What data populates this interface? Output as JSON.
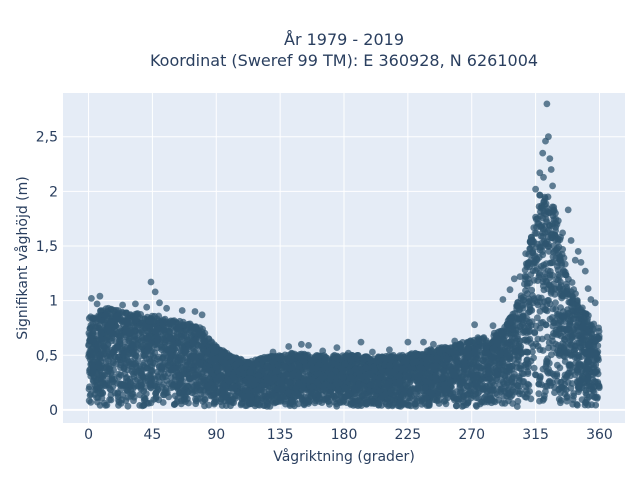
{
  "chart_data": {
    "type": "scatter",
    "title_line1": "År 1979 - 2019",
    "title_line2": "Koordinat (Sweref 99 TM): E 360928, N 6261004",
    "xlabel": "Vågriktning (grader)",
    "ylabel": "Signifikant våghöjd (m)",
    "xlim": [
      -18,
      378
    ],
    "ylim": [
      -0.12,
      2.9
    ],
    "x_ticks": [
      0,
      45,
      90,
      135,
      180,
      225,
      270,
      315,
      360
    ],
    "x_tick_labels": [
      "0",
      "45",
      "90",
      "135",
      "180",
      "225",
      "270",
      "315",
      "360"
    ],
    "y_ticks": [
      0,
      0.5,
      1,
      1.5,
      2,
      2.5
    ],
    "y_tick_labels": [
      "0",
      "0,5",
      "1",
      "1,5",
      "2",
      "2,5"
    ],
    "grid": true,
    "background": "#e5ecf6",
    "marker_color": "#2f5670",
    "envelope": {
      "direction": [
        0,
        10,
        20,
        30,
        40,
        50,
        60,
        70,
        80,
        90,
        100,
        110,
        120,
        130,
        140,
        150,
        160,
        170,
        180,
        190,
        200,
        210,
        220,
        230,
        240,
        250,
        260,
        270,
        280,
        290,
        300,
        305,
        310,
        315,
        320,
        325,
        330,
        335,
        340,
        345,
        350,
        355,
        360
      ],
      "upper_height": [
        0.85,
        0.93,
        0.92,
        0.9,
        0.88,
        0.86,
        0.82,
        0.8,
        0.75,
        0.58,
        0.5,
        0.45,
        0.47,
        0.5,
        0.52,
        0.52,
        0.5,
        0.5,
        0.5,
        0.5,
        0.48,
        0.5,
        0.5,
        0.52,
        0.55,
        0.58,
        0.6,
        0.65,
        0.68,
        0.72,
        0.9,
        1.1,
        1.45,
        1.85,
        2.15,
        2.0,
        1.75,
        1.45,
        1.2,
        1.0,
        0.9,
        0.82,
        0.75
      ]
    },
    "outliers": [
      {
        "x": 2,
        "y": 1.02
      },
      {
        "x": 8,
        "y": 1.04
      },
      {
        "x": 6,
        "y": 0.97
      },
      {
        "x": 14,
        "y": 0.93
      },
      {
        "x": 24,
        "y": 0.96
      },
      {
        "x": 33,
        "y": 0.97
      },
      {
        "x": 41,
        "y": 0.94
      },
      {
        "x": 44,
        "y": 1.17
      },
      {
        "x": 47,
        "y": 1.08
      },
      {
        "x": 50,
        "y": 0.98
      },
      {
        "x": 55,
        "y": 0.93
      },
      {
        "x": 66,
        "y": 0.91
      },
      {
        "x": 75,
        "y": 0.9
      },
      {
        "x": 80,
        "y": 0.87
      },
      {
        "x": 130,
        "y": 0.53
      },
      {
        "x": 141,
        "y": 0.58
      },
      {
        "x": 150,
        "y": 0.6
      },
      {
        "x": 155,
        "y": 0.59
      },
      {
        "x": 165,
        "y": 0.54
      },
      {
        "x": 175,
        "y": 0.57
      },
      {
        "x": 183,
        "y": 0.52
      },
      {
        "x": 192,
        "y": 0.62
      },
      {
        "x": 200,
        "y": 0.53
      },
      {
        "x": 212,
        "y": 0.55
      },
      {
        "x": 225,
        "y": 0.62
      },
      {
        "x": 236,
        "y": 0.62
      },
      {
        "x": 243,
        "y": 0.6
      },
      {
        "x": 258,
        "y": 0.63
      },
      {
        "x": 272,
        "y": 0.78
      },
      {
        "x": 285,
        "y": 0.77
      },
      {
        "x": 292,
        "y": 1.01
      },
      {
        "x": 297,
        "y": 1.1
      },
      {
        "x": 300,
        "y": 1.2
      },
      {
        "x": 304,
        "y": 1.22
      },
      {
        "x": 308,
        "y": 1.43
      },
      {
        "x": 312,
        "y": 1.58
      },
      {
        "x": 315,
        "y": 2.02
      },
      {
        "x": 318,
        "y": 2.17
      },
      {
        "x": 320,
        "y": 2.35
      },
      {
        "x": 322,
        "y": 2.46
      },
      {
        "x": 323,
        "y": 2.8
      },
      {
        "x": 324,
        "y": 2.5
      },
      {
        "x": 325,
        "y": 2.3
      },
      {
        "x": 326,
        "y": 2.2
      },
      {
        "x": 327,
        "y": 2.05
      },
      {
        "x": 329,
        "y": 1.8
      },
      {
        "x": 331,
        "y": 1.73
      },
      {
        "x": 334,
        "y": 1.62
      },
      {
        "x": 338,
        "y": 1.83
      },
      {
        "x": 340,
        "y": 1.55
      },
      {
        "x": 343,
        "y": 1.37
      },
      {
        "x": 345,
        "y": 1.45
      },
      {
        "x": 347,
        "y": 1.35
      },
      {
        "x": 350,
        "y": 1.27
      },
      {
        "x": 352,
        "y": 1.11
      },
      {
        "x": 354,
        "y": 1.01
      },
      {
        "x": 357,
        "y": 0.98
      }
    ]
  }
}
